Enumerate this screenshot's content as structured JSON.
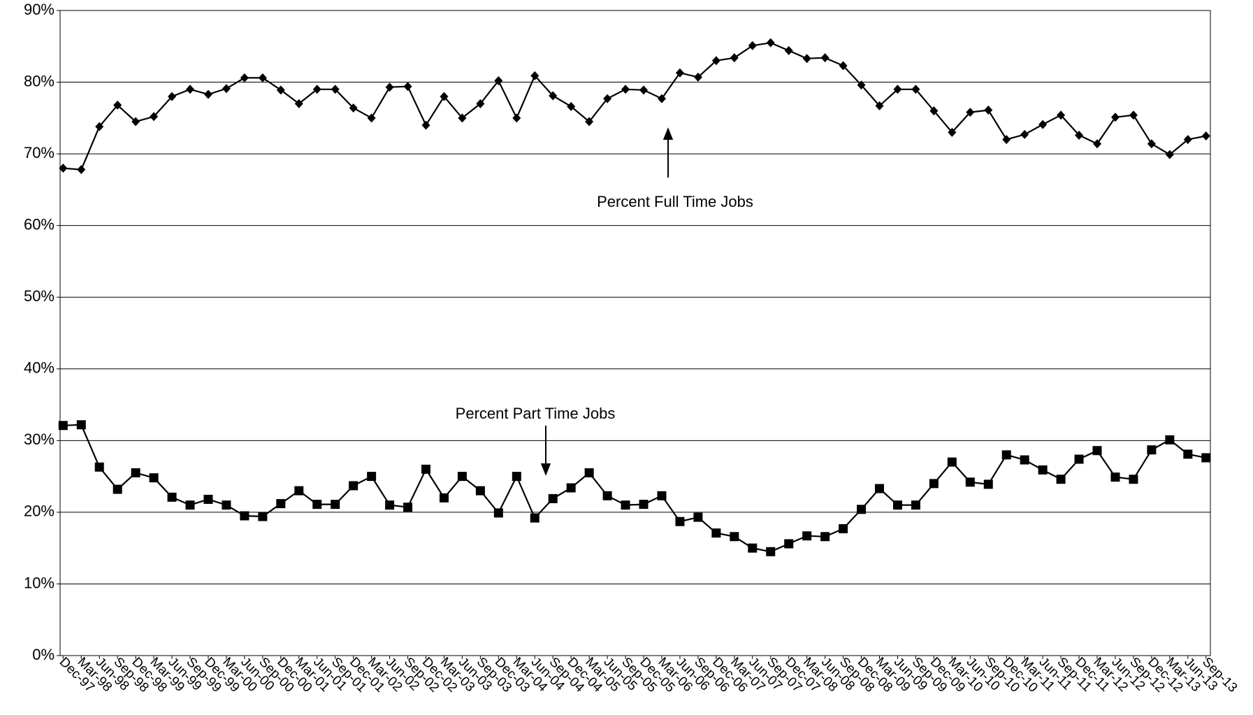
{
  "chart_data": {
    "type": "line",
    "categories": [
      "Dec-97",
      "Mar-98",
      "Jun-98",
      "Sep-98",
      "Dec-98",
      "Mar-99",
      "Jun-99",
      "Sep-99",
      "Dec-99",
      "Mar-00",
      "Jun-00",
      "Sep-00",
      "Dec-00",
      "Mar-01",
      "Jun-01",
      "Sep-01",
      "Dec-01",
      "Mar-02",
      "Jun-02",
      "Sep-02",
      "Dec-02",
      "Mar-03",
      "Jun-03",
      "Sep-03",
      "Dec-03",
      "Mar-04",
      "Jun-04",
      "Sep-04",
      "Dec-04",
      "Mar-05",
      "Jun-05",
      "Sep-05",
      "Dec-05",
      "Mar-06",
      "Jun-06",
      "Sep-06",
      "Dec-06",
      "Mar-07",
      "Jun-07",
      "Sep-07",
      "Dec-07",
      "Mar-08",
      "Jun-08",
      "Sep-08",
      "Dec-08",
      "Mar-09",
      "Jun-09",
      "Sep-09",
      "Dec-09",
      "Mar-10",
      "Jun-10",
      "Sep-10",
      "Dec-10",
      "Mar-11",
      "Jun-11",
      "Sep-11",
      "Dec-11",
      "Mar-12",
      "Jun-12",
      "Sep-12",
      "Dec-12",
      "Mar-13",
      "Jun-13",
      "Sep-13"
    ],
    "series": [
      {
        "name": "Percent Full Time Jobs",
        "color": "#000000",
        "marker": "diamond",
        "values": [
          68,
          67.8,
          73.8,
          76.8,
          74.5,
          75.2,
          78,
          79,
          78.3,
          79.1,
          80.6,
          80.6,
          78.9,
          77,
          79,
          79,
          76.4,
          75,
          79.3,
          79.4,
          74,
          78,
          75,
          77,
          80.2,
          75,
          80.9,
          78.1,
          76.6,
          74.5,
          77.7,
          79,
          78.9,
          77.7,
          81.3,
          80.7,
          83,
          83.4,
          85.1,
          85.5,
          84.4,
          83.3,
          83.4,
          82.3,
          79.6,
          76.7,
          79,
          79,
          76,
          73,
          75.8,
          76.1,
          72,
          72.7,
          74.1,
          75.4,
          72.6,
          71.4,
          75.1,
          75.4,
          71.4,
          69.9,
          72,
          72.5
        ]
      },
      {
        "name": "Percent Part Time Jobs",
        "color": "#000000",
        "marker": "square",
        "values": [
          32.1,
          32.2,
          26.3,
          23.2,
          25.5,
          24.8,
          22.1,
          21,
          21.8,
          21,
          19.5,
          19.4,
          21.2,
          23,
          21.1,
          21.1,
          23.7,
          25,
          21,
          20.7,
          26,
          22,
          25,
          23,
          19.9,
          25,
          19.2,
          21.9,
          23.4,
          25.5,
          22.3,
          21,
          21.1,
          22.3,
          18.7,
          19.3,
          17.1,
          16.6,
          15,
          14.5,
          15.6,
          16.7,
          16.6,
          17.7,
          20.4,
          23.3,
          21,
          21,
          24,
          27,
          24.2,
          23.9,
          28,
          27.3,
          25.9,
          24.6,
          27.4,
          28.6,
          24.9,
          24.6,
          28.7,
          30.1,
          28.1,
          27.6
        ]
      }
    ],
    "ylim": [
      0,
      90
    ],
    "yticks": [
      {
        "value": 0,
        "label": "0%"
      },
      {
        "value": 10,
        "label": "10%"
      },
      {
        "value": 20,
        "label": "20%"
      },
      {
        "value": 30,
        "label": "30%"
      },
      {
        "value": 40,
        "label": "40%"
      },
      {
        "value": 50,
        "label": "50%"
      },
      {
        "value": 60,
        "label": "60%"
      },
      {
        "value": 70,
        "label": "70%"
      },
      {
        "value": 80,
        "label": "80%"
      },
      {
        "value": 90,
        "label": "90%"
      }
    ],
    "grid": true
  }
}
